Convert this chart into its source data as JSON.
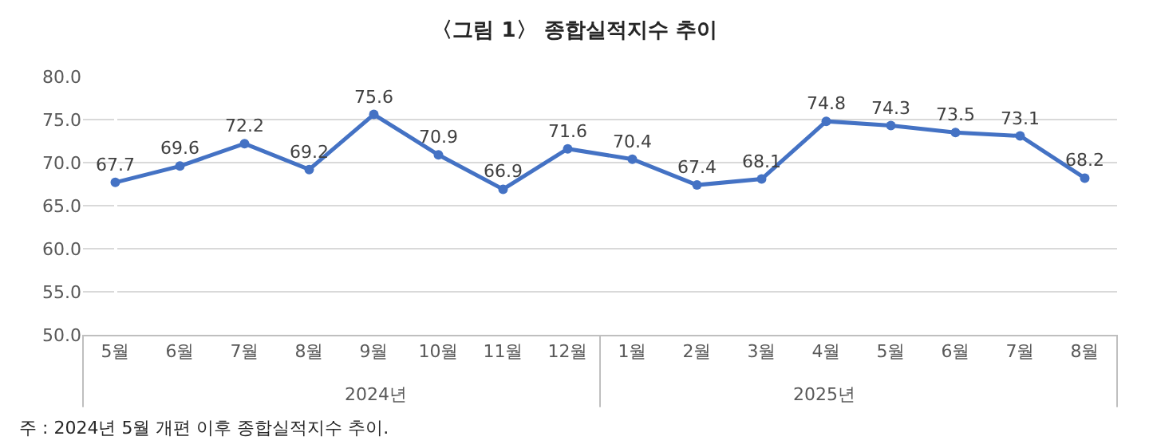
{
  "chart_data": {
    "type": "line",
    "title": "〈그림 1〉 종합실적지수 추이",
    "categories": [
      "5월",
      "6월",
      "7월",
      "8월",
      "9월",
      "10월",
      "11월",
      "12월",
      "1월",
      "2월",
      "3월",
      "4월",
      "5월",
      "6월",
      "7월",
      "8월"
    ],
    "series": [
      {
        "color": "#4472c4",
        "values": [
          67.7,
          69.6,
          72.2,
          69.2,
          75.6,
          70.9,
          66.9,
          71.6,
          70.4,
          67.4,
          68.1,
          74.8,
          74.3,
          73.5,
          73.1,
          68.2
        ]
      }
    ],
    "ylim": [
      50,
      80
    ],
    "yticks": [
      {
        "value": 50,
        "label": "50.0"
      },
      {
        "value": 55,
        "label": "55.0"
      },
      {
        "value": 60,
        "label": "60.0"
      },
      {
        "value": 65,
        "label": "65.0"
      },
      {
        "value": 70,
        "label": "70.0"
      },
      {
        "value": 75,
        "label": "75.0"
      },
      {
        "value": 80,
        "label": "80.0"
      }
    ],
    "grid": "y",
    "marker": "circle",
    "line_style": "solid",
    "data_labels": true,
    "legend": false,
    "annotations": [
      "2024년",
      "2025년",
      "주 : 2024년 5월 개편 이후 종합실적지수 추이."
    ]
  }
}
